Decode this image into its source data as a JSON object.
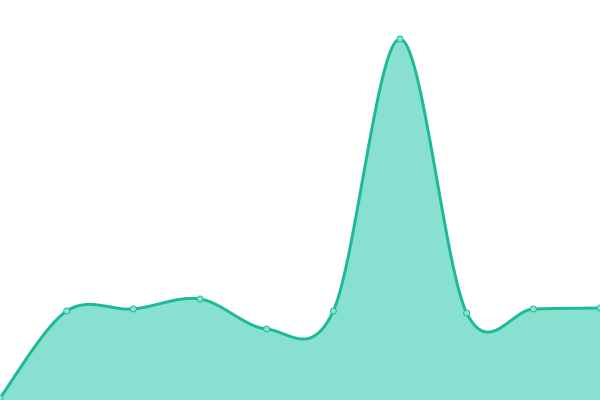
{
  "chart_data": {
    "type": "area",
    "categories": [
      null,
      null,
      null,
      null,
      null,
      null,
      null,
      null,
      null,
      null
    ],
    "values": [
      2,
      89,
      91,
      101,
      71,
      89,
      361,
      87,
      91,
      92
    ],
    "ylim": [
      0,
      400
    ],
    "color": "#1fb99a",
    "fill_color": "#88e1d0",
    "marker_color": "#8fe3d3",
    "smooth": true,
    "markers": true
  }
}
